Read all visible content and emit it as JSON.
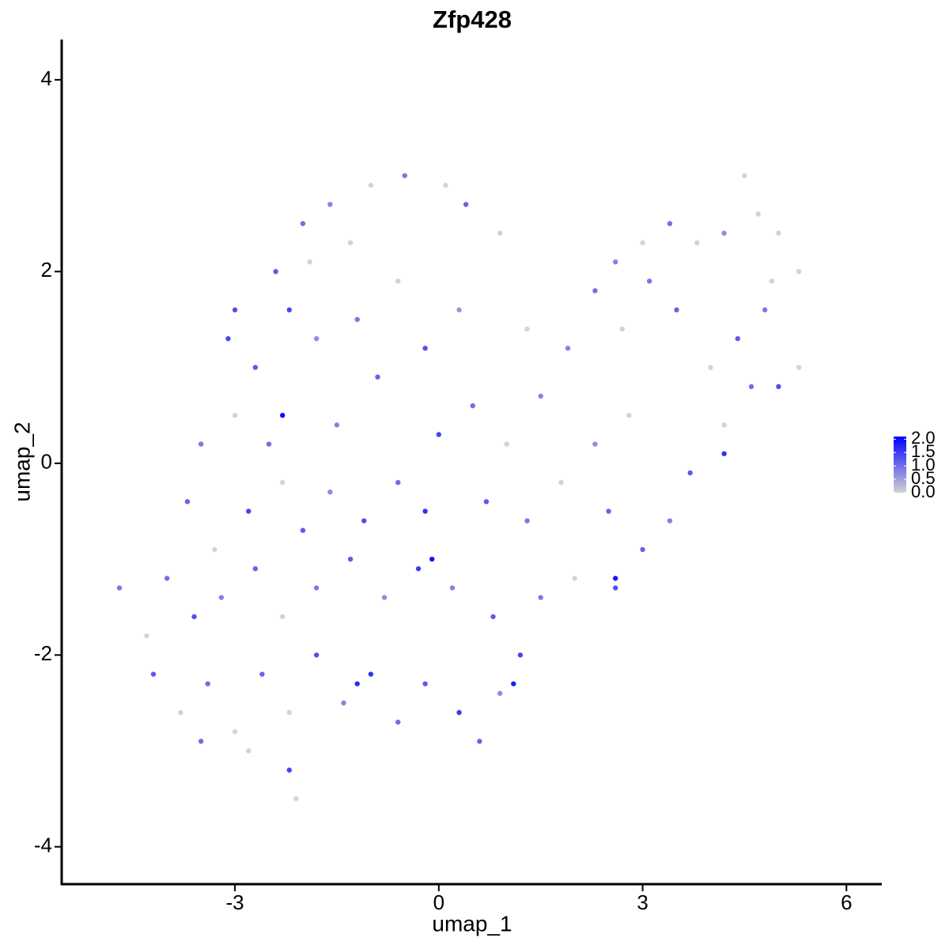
{
  "chart_data": {
    "type": "scatter",
    "title": "Zfp428",
    "x_label": "umap_1",
    "y_label": "umap_2",
    "xlim": [
      -5.55,
      6.52
    ],
    "ylim": [
      -4.39,
      4.42
    ],
    "xticks": [
      -3,
      0,
      3,
      6
    ],
    "yticks": [
      -4,
      -2,
      0,
      2,
      4
    ],
    "color_low": "#d3d3d3",
    "color_high": "#0000ff",
    "color_lim": [
      0,
      2.1
    ],
    "color_ticks": [
      {
        "value": 0,
        "label": "0.0"
      },
      {
        "value": 0.5,
        "label": "0.5"
      },
      {
        "value": 1,
        "label": "1.0"
      },
      {
        "value": 1.5,
        "label": "1.5"
      },
      {
        "value": 2,
        "label": "2.0"
      }
    ],
    "legend": "right",
    "x": [
      -2.4,
      -2.0,
      -1.6,
      -1.0,
      -0.5,
      0.1,
      0.4,
      -1.3,
      -2.2,
      -1.8,
      -3.0,
      -2.7,
      -3.0,
      -2.5,
      -1.2,
      -0.6,
      -0.2,
      0.3,
      -0.9,
      -1.5,
      -3.5,
      -3.7,
      -3.3,
      -2.8,
      -2.3,
      -2.0,
      -1.6,
      -1.1,
      -0.6,
      -0.2,
      -4.0,
      -3.6,
      -3.2,
      -2.7,
      -2.3,
      -1.8,
      -1.3,
      -0.8,
      -0.3,
      0.2,
      -4.2,
      -3.8,
      -3.4,
      -3.0,
      -2.6,
      -2.2,
      -1.8,
      -1.4,
      -1.0,
      -0.6,
      -0.2,
      0.3,
      0.6,
      0.9,
      -2.2,
      -2.8,
      -3.5,
      -2.1,
      -4.7,
      -4.3,
      0.8,
      1.2,
      1.5,
      2.0,
      2.6,
      3.0,
      3.4,
      3.7,
      4.2,
      4.6,
      5.0,
      5.3,
      4.8,
      4.4,
      4.0,
      3.5,
      3.1,
      2.7,
      2.3,
      1.9,
      4.5,
      4.7,
      5.0,
      5.3,
      4.2,
      3.8,
      3.4,
      3.0,
      2.6,
      4.9,
      0.5,
      1.0,
      1.5,
      0.7,
      1.3,
      1.8,
      2.3,
      2.8,
      2.5,
      0.0,
      -2.3,
      -0.1,
      2.6,
      1.1,
      -1.2,
      4.2,
      -3.1,
      0.9,
      1.3,
      -1.9
    ],
    "y": [
      2.0,
      2.5,
      2.7,
      2.9,
      3.0,
      2.9,
      2.7,
      2.3,
      1.6,
      1.3,
      1.6,
      1.0,
      0.5,
      0.2,
      1.5,
      1.9,
      1.2,
      1.6,
      0.9,
      0.4,
      0.2,
      -0.4,
      -0.9,
      -0.5,
      -0.2,
      -0.7,
      -0.3,
      -0.6,
      -0.2,
      -0.5,
      -1.2,
      -1.6,
      -1.4,
      -1.1,
      -1.6,
      -1.3,
      -1.0,
      -1.4,
      -1.1,
      -1.3,
      -2.2,
      -2.6,
      -2.3,
      -2.8,
      -2.2,
      -2.6,
      -2.0,
      -2.5,
      -2.2,
      -2.7,
      -2.3,
      -2.6,
      -2.9,
      -2.4,
      -3.2,
      -3.0,
      -2.9,
      -3.5,
      -1.3,
      -1.8,
      -1.6,
      -2.0,
      -1.4,
      -1.2,
      -1.3,
      -0.9,
      -0.6,
      -0.1,
      0.4,
      0.8,
      0.8,
      1.0,
      1.6,
      1.3,
      1.0,
      1.6,
      1.9,
      1.4,
      1.8,
      1.2,
      3.0,
      2.6,
      2.4,
      2.0,
      2.4,
      2.3,
      2.5,
      2.3,
      2.1,
      1.9,
      0.6,
      0.2,
      0.7,
      -0.4,
      -0.6,
      -0.2,
      0.2,
      0.5,
      -0.5,
      0.3,
      0.5,
      -1.0,
      -1.2,
      -2.3,
      -2.3,
      0.1,
      1.3,
      2.4,
      1.4,
      2.1
    ],
    "expression": [
      1.2,
      1.0,
      0.8,
      0,
      0.9,
      0,
      1.1,
      0,
      1.4,
      0.7,
      1.3,
      1.2,
      0,
      1.0,
      0.9,
      0,
      1.3,
      0.6,
      1.1,
      0.8,
      0.9,
      1.1,
      0,
      1.4,
      0,
      1.2,
      0.7,
      1.3,
      1.0,
      1.6,
      1.0,
      1.3,
      0.8,
      1.1,
      0,
      0.9,
      1.2,
      0.7,
      1.5,
      0.8,
      1.2,
      0,
      1.0,
      0,
      1.1,
      0,
      1.3,
      0.8,
      1.6,
      1.0,
      1.2,
      1.5,
      1.1,
      0.7,
      1.4,
      0,
      1.0,
      0,
      0.9,
      0,
      1.2,
      1.4,
      0.9,
      0,
      1.3,
      1.1,
      0.8,
      1.2,
      0,
      1.0,
      1.3,
      0,
      0.9,
      1.2,
      0,
      1.1,
      0.9,
      0,
      1.0,
      0.8,
      0,
      0,
      0,
      0,
      0.7,
      0,
      1.0,
      0,
      0.8,
      0,
      1.0,
      0,
      0.8,
      1.2,
      0.9,
      0,
      0.7,
      0,
      1.1,
      1.4,
      2.0,
      1.9,
      1.9,
      1.8,
      1.7,
      1.6,
      1.4,
      0,
      0,
      0
    ]
  }
}
